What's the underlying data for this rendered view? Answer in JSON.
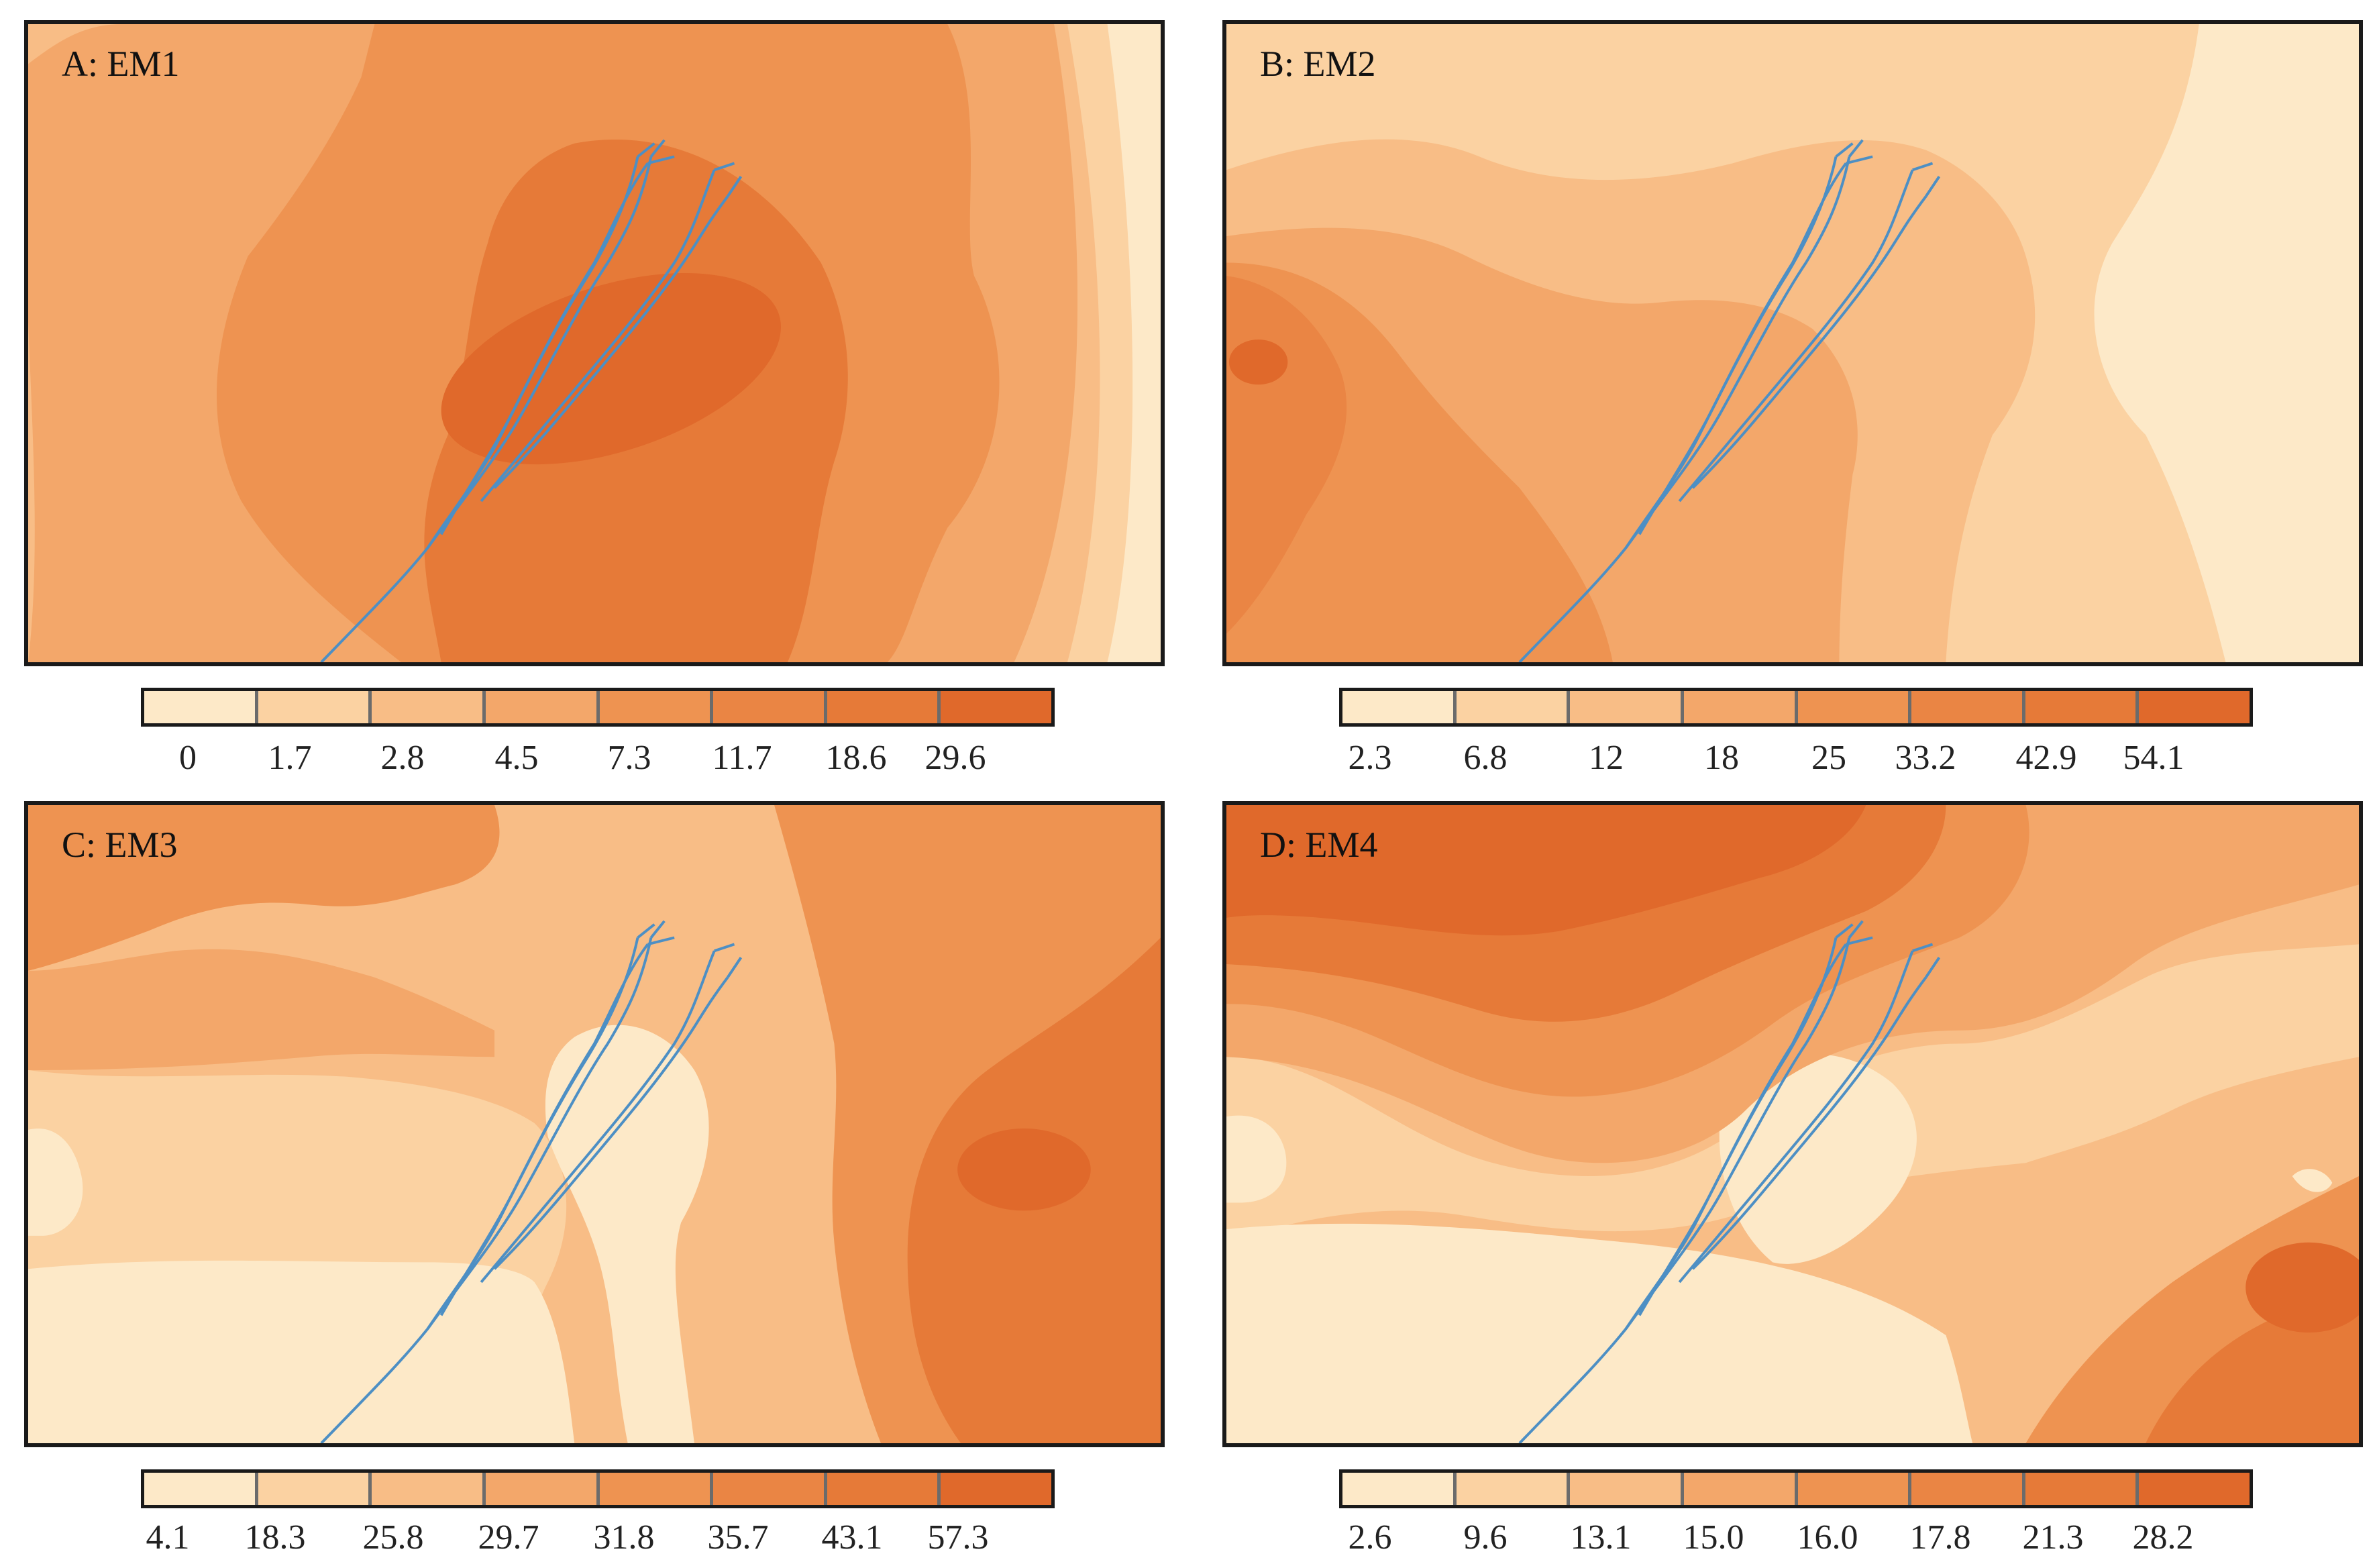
{
  "colors": {
    "palette": [
      "#fde9c8",
      "#fbd2a2",
      "#f8bd86",
      "#f3a76a",
      "#ee9351",
      "#ea8544",
      "#e67a38",
      "#e0692b"
    ],
    "river": "#4d8fc4",
    "frame": "#1a1a1a"
  },
  "panels": [
    {
      "id": "A",
      "label": "A: EM1",
      "legend": [
        "0",
        "1.7",
        "2.8",
        "4.5",
        "7.3",
        "11.7",
        "18.6",
        "29.6"
      ]
    },
    {
      "id": "B",
      "label": "B: EM2",
      "legend": [
        "2.3",
        "6.8",
        "12",
        "18",
        "25",
        "33.2",
        "42.9",
        "54.1"
      ]
    },
    {
      "id": "C",
      "label": "C: EM3",
      "legend": [
        "4.1",
        "18.3",
        "25.8",
        "29.7",
        "31.8",
        "35.7",
        "43.1",
        "57.3"
      ]
    },
    {
      "id": "D",
      "label": "D: EM4",
      "legend": [
        "2.6",
        "9.6",
        "13.1",
        "15.0",
        "16.0",
        "17.8",
        "21.3",
        "28.2"
      ]
    }
  ]
}
